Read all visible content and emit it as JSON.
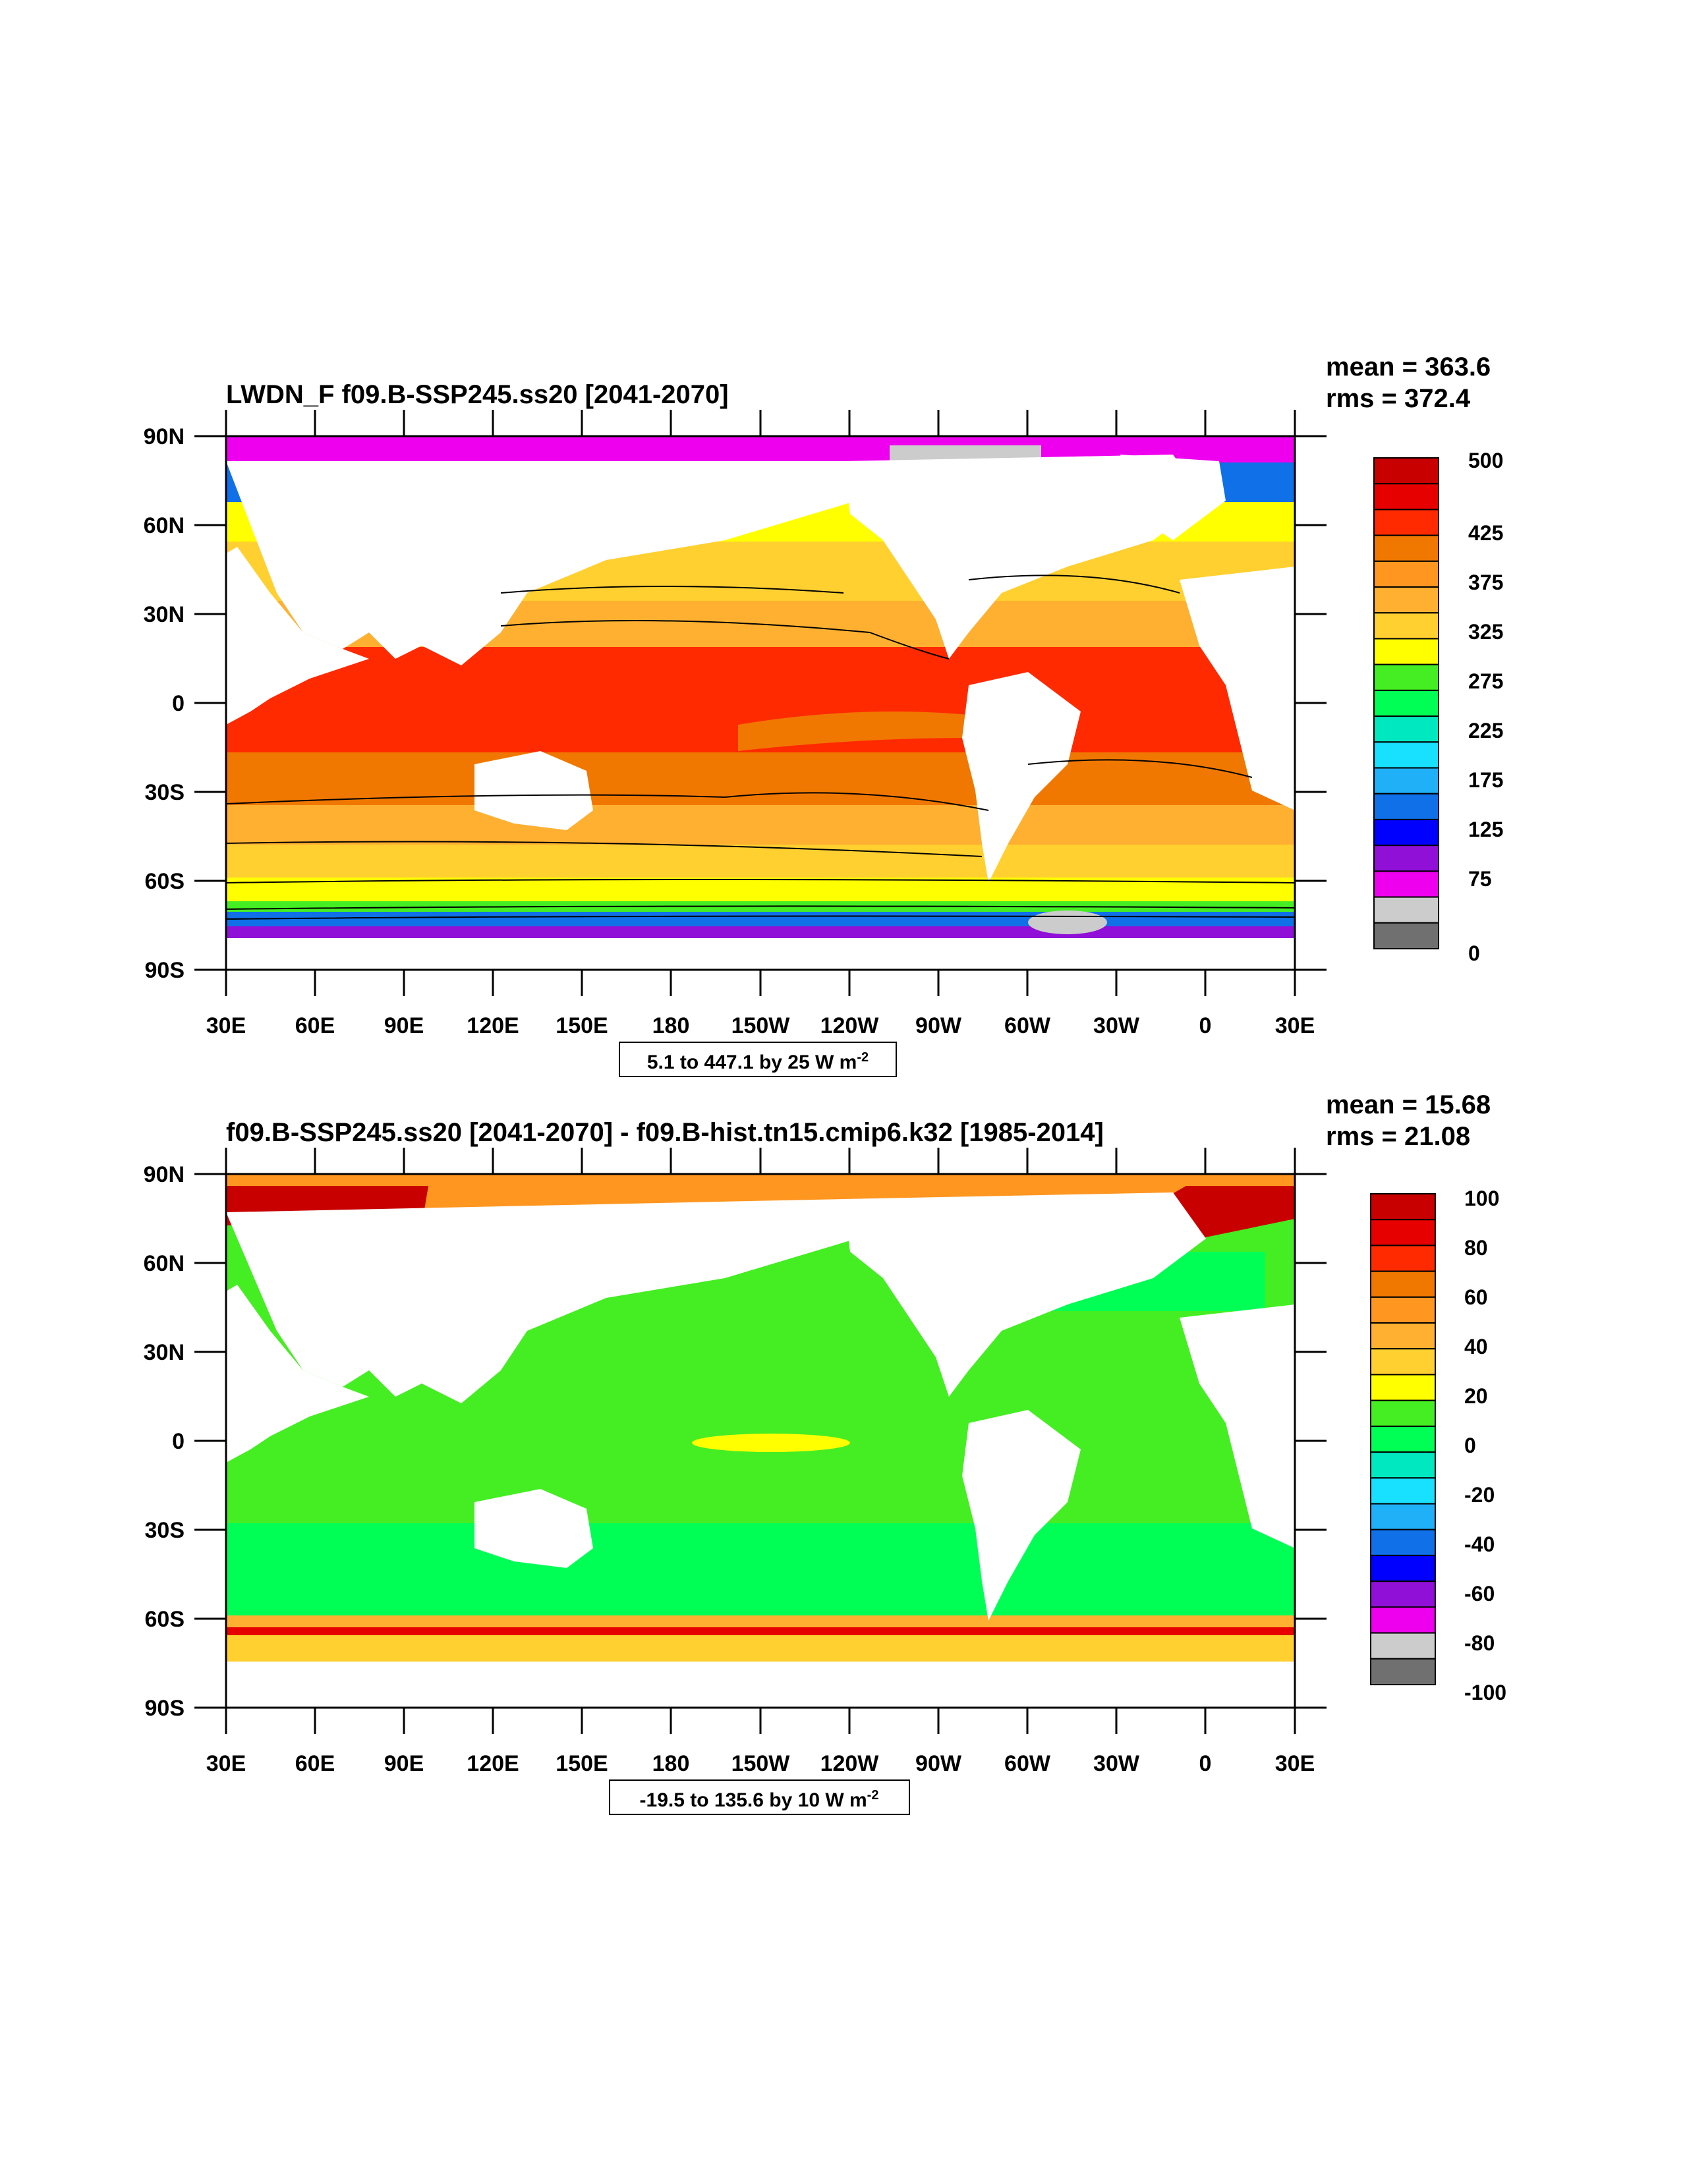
{
  "panels": [
    {
      "title": "LWDN_F f09.B-SSP245.ss20 [2041-2070]",
      "mean_label": "mean = 363.6",
      "rms_label": "rms = 372.4",
      "range_text": "5.1 to 447.1 by 25  W m",
      "range_sup": "-2",
      "colorbar_labels": [
        "500",
        "425",
        "375",
        "325",
        "275",
        "225",
        "175",
        "125",
        "75",
        "0"
      ]
    },
    {
      "title": "f09.B-SSP245.ss20 [2041-2070] - f09.B-hist.tn15.cmip6.k32 [1985-2014]",
      "mean_label": "mean = 15.68",
      "rms_label": "rms = 21.08",
      "range_text": "-19.5 to 135.6 by 10  W m",
      "range_sup": "-2",
      "colorbar_labels": [
        "100",
        "80",
        "60",
        "40",
        "20",
        "0",
        "-20",
        "-40",
        "-60",
        "-80",
        "-100"
      ]
    }
  ],
  "axes": {
    "lat_labels": [
      "90N",
      "60N",
      "30N",
      "0",
      "30S",
      "60S",
      "90S"
    ],
    "lon_labels": [
      "30E",
      "60E",
      "90E",
      "120E",
      "150E",
      "180",
      "150W",
      "120W",
      "90W",
      "60W",
      "30W",
      "0",
      "30E"
    ]
  },
  "colors": {
    "panel1_colorbar": [
      "#c80000",
      "#e60000",
      "#ff2a00",
      "#f07800",
      "#ff9620",
      "#ffb030",
      "#ffd030",
      "#ffff00",
      "#44ee22",
      "#00ff55",
      "#00e8c0",
      "#18e0ff",
      "#20b0f8",
      "#1070e8",
      "#0000ff",
      "#9010d8",
      "#ee00ee",
      "#cccccc",
      "#707070"
    ],
    "panel2_colorbar": [
      "#c80000",
      "#e60000",
      "#ff2a00",
      "#f07800",
      "#ff9620",
      "#ffb030",
      "#ffd030",
      "#ffff00",
      "#44ee22",
      "#00ff55",
      "#00e8c0",
      "#18e0ff",
      "#20b0f8",
      "#1070e8",
      "#0000ff",
      "#9010d8",
      "#ee00ee",
      "#cccccc",
      "#707070"
    ]
  }
}
